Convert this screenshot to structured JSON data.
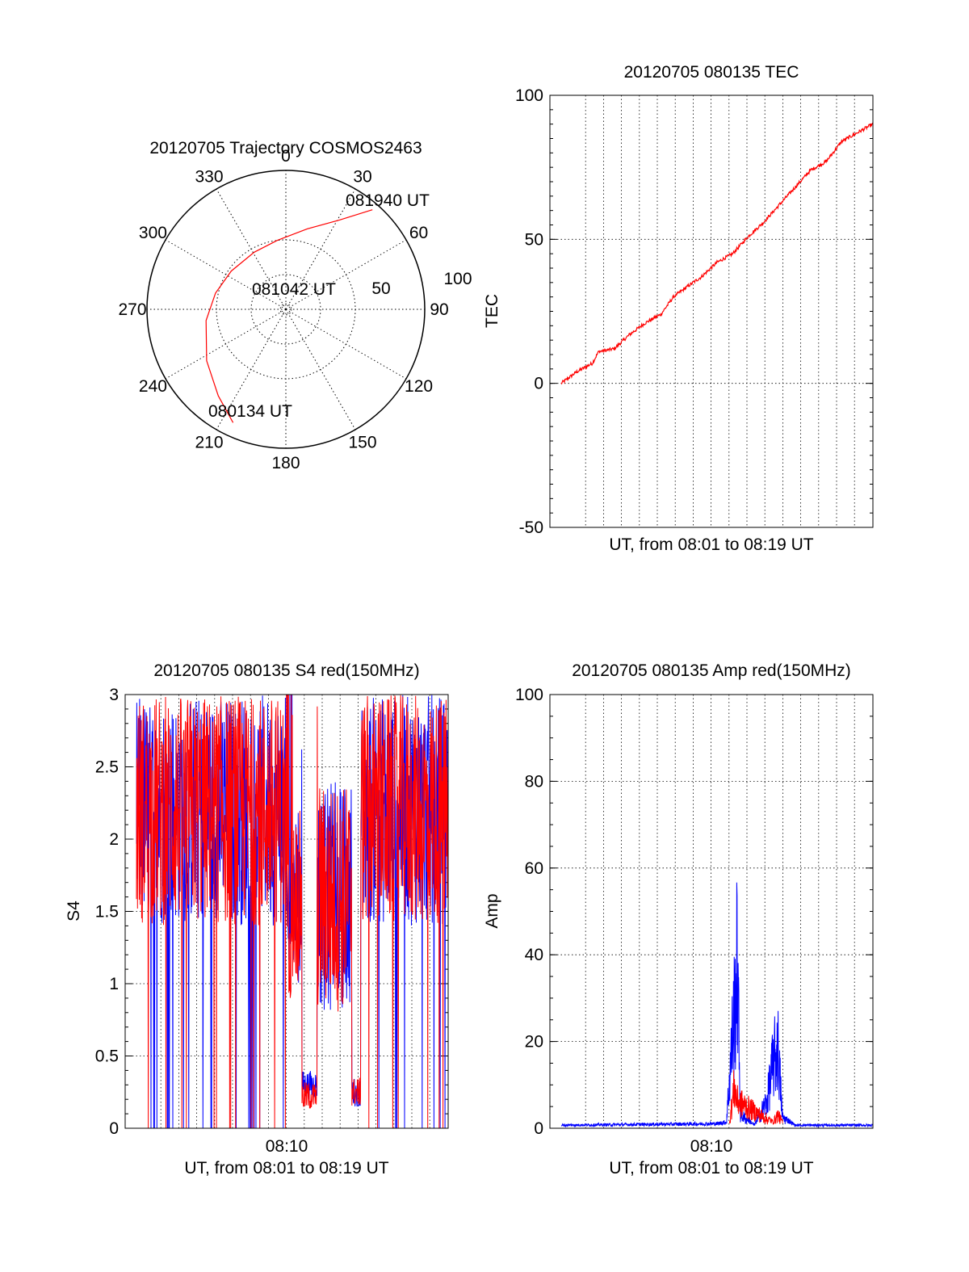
{
  "chart_data": [
    {
      "type": "polar",
      "title": "20120705 Trajectory COSMOS2463",
      "azimuth_labels": [
        "0",
        "30",
        "60",
        "90",
        "120",
        "150",
        "180",
        "210",
        "240",
        "270",
        "300",
        "330"
      ],
      "radial_labels": [
        "50",
        "100"
      ],
      "rlim": [
        0,
        100
      ],
      "grid": true,
      "trajectory": {
        "color": "#ff0000",
        "points": [
          {
            "az": 205,
            "r": 90
          },
          {
            "az": 218,
            "r": 79
          },
          {
            "az": 237,
            "r": 68
          },
          {
            "az": 262,
            "r": 58
          },
          {
            "az": 283,
            "r": 52
          },
          {
            "az": 305,
            "r": 48
          },
          {
            "az": 331,
            "r": 47
          },
          {
            "az": 353,
            "r": 50
          },
          {
            "az": 15,
            "r": 60
          },
          {
            "az": 31,
            "r": 75
          },
          {
            "az": 41,
            "r": 95
          }
        ]
      },
      "annotations": [
        "080134 UT",
        "081042 UT",
        "081940 UT"
      ]
    },
    {
      "type": "line",
      "title": "20120705 080135 TEC",
      "ylabel": "TEC",
      "xlabel": "UT, from 08:01 to 08:19 UT",
      "ylim": [
        -50,
        100
      ],
      "yticks": [
        "-50",
        "0",
        "50",
        "100"
      ],
      "grid": true,
      "series": [
        {
          "color": "#ff0000",
          "x": [
            0,
            0.05,
            0.1,
            0.12,
            0.17,
            0.22,
            0.27,
            0.32,
            0.36,
            0.41,
            0.45,
            0.5,
            0.55,
            0.6,
            0.65,
            0.7,
            0.75,
            0.8,
            0.85,
            0.9,
            0.95,
            1.0
          ],
          "values": [
            0,
            4,
            7,
            11,
            12,
            17,
            21,
            24,
            30,
            34,
            37,
            42,
            45,
            51,
            56,
            62,
            68,
            74,
            77,
            84,
            87,
            90
          ]
        }
      ]
    },
    {
      "type": "line",
      "title": "20120705 080135 S4 red(150MHz)",
      "ylabel": "S4",
      "xlabel": "UT, from 08:01 to 08:19 UT",
      "xtick": "08:10",
      "ylim": [
        0,
        3
      ],
      "yticks": [
        "0",
        "0.5",
        "1",
        "1.5",
        "2",
        "2.5",
        "3"
      ],
      "grid": true,
      "series": [
        {
          "color": "#0000ff"
        },
        {
          "color": "#ff0000"
        }
      ]
    },
    {
      "type": "line",
      "title": "20120705 080135 Amp red(150MHz)",
      "ylabel": "Amp",
      "xlabel": "UT, from 08:01 to 08:19 UT",
      "xtick": "08:10",
      "ylim": [
        0,
        100
      ],
      "yticks": [
        "0",
        "20",
        "40",
        "60",
        "80",
        "100"
      ],
      "grid": true,
      "series": [
        {
          "color": "#0000ff",
          "envelope": [
            {
              "x": 0.0,
              "y": 1
            },
            {
              "x": 0.5,
              "y": 1.5
            },
            {
              "x": 0.53,
              "y": 2
            },
            {
              "x": 0.55,
              "y": 35
            },
            {
              "x": 0.56,
              "y": 50
            },
            {
              "x": 0.565,
              "y": 61
            },
            {
              "x": 0.575,
              "y": 5
            },
            {
              "x": 0.62,
              "y": 1
            },
            {
              "x": 0.66,
              "y": 10
            },
            {
              "x": 0.68,
              "y": 24
            },
            {
              "x": 0.695,
              "y": 30
            },
            {
              "x": 0.71,
              "y": 4
            },
            {
              "x": 0.75,
              "y": 1
            },
            {
              "x": 1.0,
              "y": 1
            }
          ]
        },
        {
          "color": "#ff0000",
          "envelope": [
            {
              "x": 0.54,
              "y": 2
            },
            {
              "x": 0.555,
              "y": 15
            },
            {
              "x": 0.565,
              "y": 10
            },
            {
              "x": 0.68,
              "y": 2
            },
            {
              "x": 0.695,
              "y": 5
            },
            {
              "x": 0.71,
              "y": 2
            }
          ]
        }
      ]
    }
  ]
}
